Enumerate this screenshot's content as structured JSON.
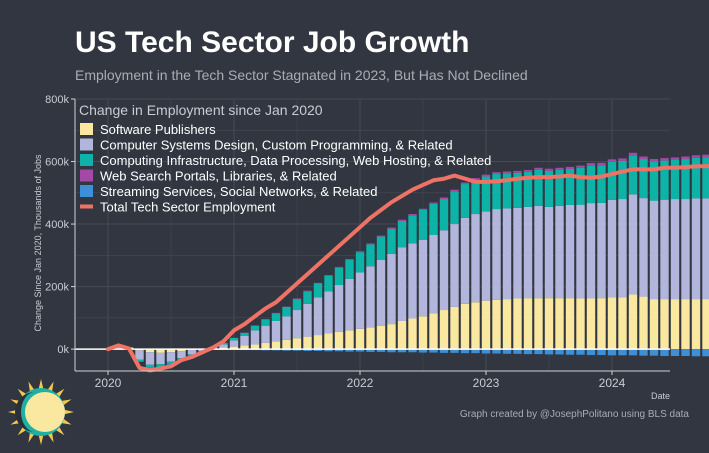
{
  "header": {
    "title": "US Tech Sector Job Growth",
    "subtitle": "Employment in the Tech Sector Stagnated in 2023, But Has Not Declined"
  },
  "footer": {
    "credit": "Graph created by @JosephPolitano using BLS data"
  },
  "colors": {
    "background": "#313640",
    "grid": "#454b56",
    "software": "#fbe8a0",
    "computer_design": "#b3b6dc",
    "infrastructure": "#0cb3a6",
    "web_search": "#a44aa6",
    "streaming": "#3d8fd8",
    "total": "#ee7366"
  },
  "chart_data": {
    "type": "bar",
    "stacked": true,
    "x_start": "2020-01",
    "xlabel": "Date",
    "ylabel": "Change Since Jan 2020, Thousands of Jobs",
    "xticks": [
      "2020",
      "2021",
      "2022",
      "2023",
      "2024"
    ],
    "yticks": [
      "0k",
      "200k",
      "400k",
      "600k",
      "800k"
    ],
    "ylim": [
      -70,
      800
    ],
    "grid": true,
    "legend": {
      "title": "Change in Employment since Jan 2020",
      "placement": "top-left"
    },
    "series": [
      {
        "name": "Software Publishers",
        "key": "software",
        "values": [
          0,
          3,
          4,
          -4,
          -10,
          -12,
          -10,
          -7,
          -3,
          0,
          3,
          5,
          8,
          12,
          15,
          20,
          25,
          30,
          35,
          40,
          45,
          50,
          55,
          60,
          65,
          70,
          75,
          80,
          90,
          98,
          105,
          115,
          125,
          135,
          145,
          150,
          155,
          158,
          160,
          162,
          163,
          163,
          163,
          163,
          163,
          162,
          162,
          163,
          165,
          165,
          175,
          168,
          160,
          160,
          160,
          160,
          160,
          160,
          160,
          160
        ]
      },
      {
        "name": "Computer Systems Design, Custom Programming, & Related",
        "key": "computer_design",
        "values": [
          0,
          5,
          2,
          -30,
          -40,
          -36,
          -30,
          -22,
          -14,
          -6,
          2,
          10,
          20,
          30,
          45,
          55,
          65,
          75,
          90,
          105,
          120,
          135,
          150,
          165,
          180,
          195,
          210,
          225,
          235,
          240,
          245,
          250,
          255,
          265,
          275,
          282,
          285,
          290,
          290,
          290,
          292,
          295,
          292,
          295,
          298,
          300,
          305,
          305,
          312,
          315,
          320,
          315,
          315,
          318,
          320,
          320,
          322,
          322,
          320,
          320
        ]
      },
      {
        "name": "Computing Infrastructure, Data Processing, Web Hosting, & Related",
        "key": "infrastructure",
        "values": [
          0,
          1,
          0,
          -5,
          -10,
          -10,
          -8,
          -5,
          -2,
          0,
          2,
          5,
          8,
          10,
          15,
          20,
          25,
          30,
          35,
          40,
          45,
          50,
          55,
          60,
          65,
          70,
          75,
          80,
          85,
          90,
          95,
          100,
          100,
          105,
          108,
          110,
          112,
          112,
          112,
          112,
          112,
          115,
          115,
          115,
          115,
          118,
          120,
          120,
          122,
          122,
          125,
          125,
          125,
          125,
          125,
          128,
          130,
          132,
          132,
          132
        ]
      },
      {
        "name": "Web Search Portals, Libraries, & Related",
        "key": "web_search",
        "values": [
          0,
          0,
          0,
          0,
          0,
          0,
          0,
          0,
          0,
          0,
          0,
          0,
          0,
          1,
          1,
          1,
          1,
          1,
          2,
          2,
          2,
          2,
          3,
          3,
          3,
          3,
          3,
          4,
          4,
          4,
          4,
          4,
          5,
          5,
          5,
          5,
          6,
          6,
          6,
          6,
          6,
          7,
          7,
          7,
          7,
          7,
          8,
          8,
          8,
          8,
          8,
          8,
          8,
          8,
          8,
          8,
          8,
          8,
          8,
          8
        ]
      },
      {
        "name": "Streaming Services, Social Networks, & Related",
        "key": "streaming",
        "values": [
          0,
          0,
          0,
          -2,
          -3,
          -3,
          -3,
          -3,
          -2,
          -2,
          -2,
          -2,
          -2,
          -3,
          -3,
          -4,
          -4,
          -5,
          -5,
          -6,
          -6,
          -7,
          -7,
          -8,
          -8,
          -9,
          -9,
          -10,
          -10,
          -10,
          -11,
          -11,
          -12,
          -12,
          -13,
          -13,
          -14,
          -14,
          -15,
          -15,
          -16,
          -16,
          -17,
          -17,
          -18,
          -18,
          -19,
          -19,
          -20,
          -20,
          -20,
          -21,
          -21,
          -22,
          -22,
          -22,
          -23,
          -23,
          -24,
          -24
        ]
      }
    ],
    "total": {
      "name": "Total Tech Sector Employment",
      "values": [
        0,
        12,
        2,
        -60,
        -68,
        -62,
        -55,
        -35,
        -25,
        -10,
        5,
        25,
        60,
        80,
        105,
        130,
        150,
        180,
        210,
        240,
        270,
        300,
        330,
        360,
        390,
        420,
        445,
        470,
        490,
        510,
        525,
        540,
        545,
        555,
        545,
        535,
        535,
        537,
        540,
        545,
        548,
        550,
        550,
        552,
        555,
        550,
        548,
        552,
        560,
        568,
        575,
        575,
        575,
        580,
        580,
        582,
        585,
        585,
        588,
        588
      ]
    }
  }
}
